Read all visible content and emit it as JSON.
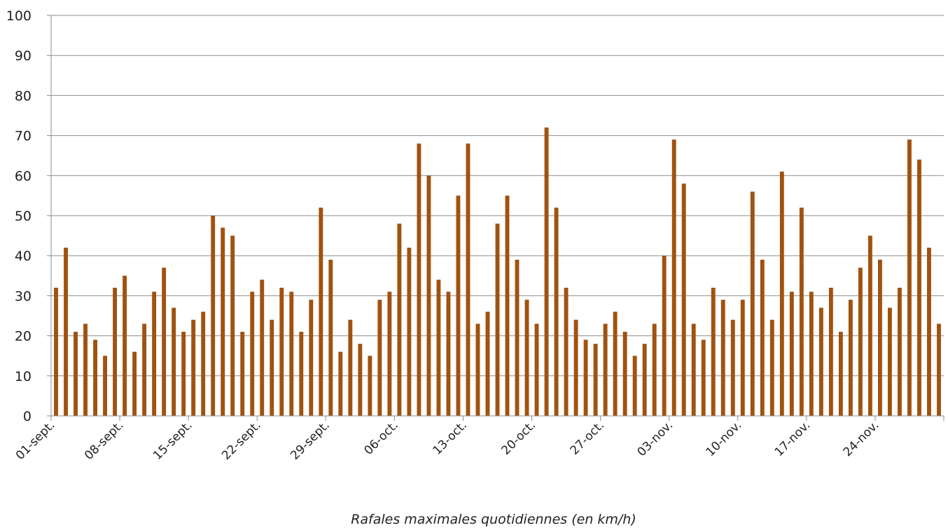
{
  "chart_data": {
    "type": "bar",
    "xlabel": "Rafales maximales quotidiennes (en km/h)",
    "ylabel": "",
    "ylim": [
      0,
      100
    ],
    "yticks": [
      0,
      10,
      20,
      30,
      40,
      50,
      60,
      70,
      80,
      90,
      100
    ],
    "grid": true,
    "bar_color": "#A0520F",
    "xtick_labels": [
      "01-sept.",
      "08-sept.",
      "15-sept.",
      "22-sept.",
      "29-sept.",
      "06-oct.",
      "13-oct.",
      "20-oct.",
      "27-oct.",
      "03-nov.",
      "10-nov.",
      "17-nov.",
      "24-nov."
    ],
    "start_date": "01-sept.",
    "values": [
      32,
      42,
      21,
      23,
      19,
      15,
      32,
      35,
      16,
      23,
      31,
      37,
      27,
      21,
      24,
      26,
      50,
      47,
      45,
      21,
      31,
      34,
      24,
      32,
      31,
      21,
      29,
      52,
      39,
      16,
      24,
      18,
      15,
      29,
      31,
      48,
      42,
      68,
      60,
      34,
      31,
      55,
      68,
      23,
      26,
      48,
      55,
      39,
      29,
      23,
      72,
      52,
      32,
      24,
      19,
      18,
      23,
      26,
      21,
      15,
      18,
      23,
      40,
      69,
      58,
      23,
      19,
      32,
      29,
      24,
      29,
      56,
      39,
      24,
      61,
      31,
      52,
      31,
      27,
      32,
      21,
      29,
      37,
      45,
      39,
      27,
      32,
      69,
      64,
      42,
      23
    ]
  }
}
